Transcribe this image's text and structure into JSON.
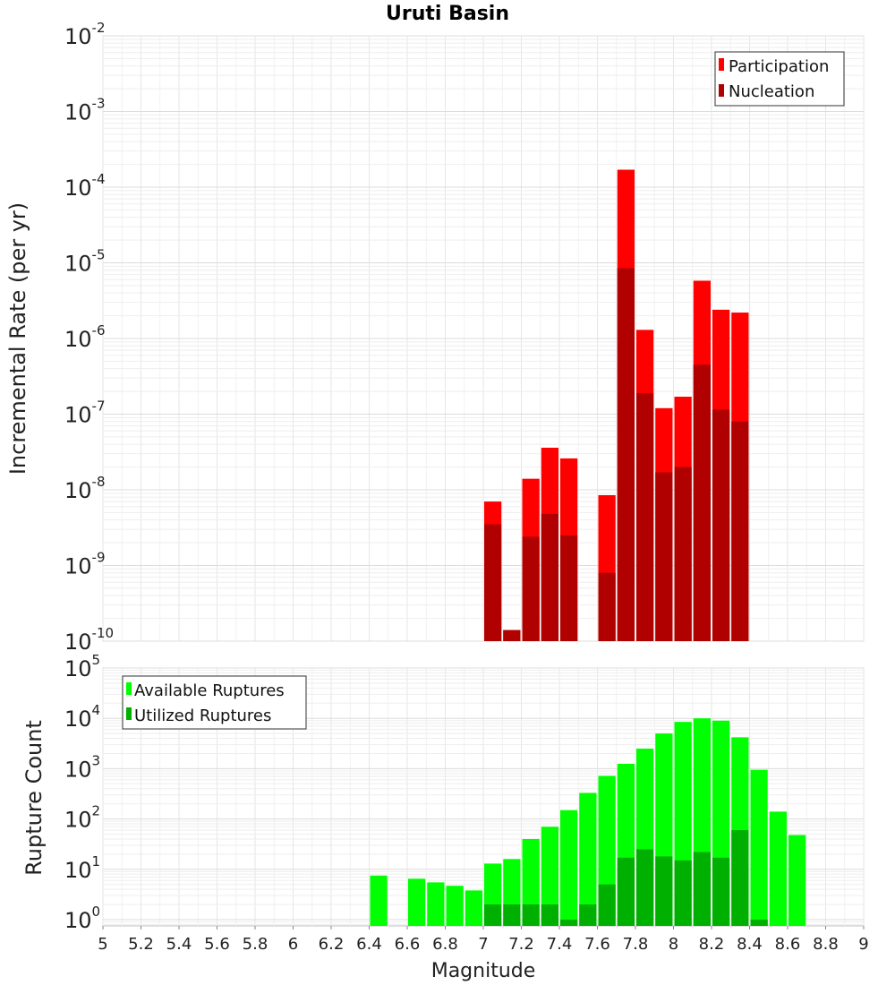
{
  "chart_data": [
    {
      "type": "bar",
      "title": "Uruti Basin",
      "xlabel": "",
      "ylabel": "Incremental Rate (per yr)",
      "y_scale": "log",
      "xlim": [
        5,
        9
      ],
      "ylim": [
        1e-10,
        0.01
      ],
      "grid": true,
      "legend_position": "top-right",
      "bar_width": 0.1,
      "y_ticks": [
        {
          "base": "10",
          "exp": "-2"
        },
        {
          "base": "10",
          "exp": "-3"
        },
        {
          "base": "10",
          "exp": "-4"
        },
        {
          "base": "10",
          "exp": "-5"
        },
        {
          "base": "10",
          "exp": "-6"
        },
        {
          "base": "10",
          "exp": "-7"
        },
        {
          "base": "10",
          "exp": "-8"
        },
        {
          "base": "10",
          "exp": "-9"
        },
        {
          "base": "10",
          "exp": "-10"
        }
      ],
      "series": [
        {
          "name": "Participation",
          "color": "#ff0000",
          "points": [
            {
              "x": 7.05,
              "y": 7e-09
            },
            {
              "x": 7.15,
              "y": 1.4e-10
            },
            {
              "x": 7.25,
              "y": 1.4e-08
            },
            {
              "x": 7.35,
              "y": 3.6e-08
            },
            {
              "x": 7.45,
              "y": 2.6e-08
            },
            {
              "x": 7.65,
              "y": 8.5e-09
            },
            {
              "x": 7.75,
              "y": 0.00017
            },
            {
              "x": 7.85,
              "y": 1.3e-06
            },
            {
              "x": 7.95,
              "y": 1.2e-07
            },
            {
              "x": 8.05,
              "y": 1.7e-07
            },
            {
              "x": 8.15,
              "y": 5.8e-06
            },
            {
              "x": 8.25,
              "y": 2.4e-06
            },
            {
              "x": 8.35,
              "y": 2.2e-06
            }
          ]
        },
        {
          "name": "Nucleation",
          "color": "#b00000",
          "points": [
            {
              "x": 7.05,
              "y": 3.5e-09
            },
            {
              "x": 7.15,
              "y": 1.4e-10
            },
            {
              "x": 7.25,
              "y": 2.4e-09
            },
            {
              "x": 7.35,
              "y": 4.8e-09
            },
            {
              "x": 7.45,
              "y": 2.5e-09
            },
            {
              "x": 7.65,
              "y": 8e-10
            },
            {
              "x": 7.75,
              "y": 8.5e-06
            },
            {
              "x": 7.85,
              "y": 1.9e-07
            },
            {
              "x": 7.95,
              "y": 1.7e-08
            },
            {
              "x": 8.05,
              "y": 2e-08
            },
            {
              "x": 8.15,
              "y": 4.5e-07
            },
            {
              "x": 8.25,
              "y": 1.15e-07
            },
            {
              "x": 8.35,
              "y": 8e-08
            }
          ]
        }
      ]
    },
    {
      "type": "bar",
      "title": "",
      "xlabel": "Magnitude",
      "ylabel": "Rupture Count",
      "y_scale": "log",
      "xlim": [
        5,
        9
      ],
      "ylim": [
        0.75,
        100000.0
      ],
      "grid": true,
      "legend_position": "top-left",
      "bar_width": 0.1,
      "y_ticks": [
        {
          "base": "10",
          "exp": "5"
        },
        {
          "base": "10",
          "exp": "4"
        },
        {
          "base": "10",
          "exp": "3"
        },
        {
          "base": "10",
          "exp": "2"
        },
        {
          "base": "10",
          "exp": "1"
        },
        {
          "base": "10",
          "exp": "0"
        }
      ],
      "x_ticks": [
        "5",
        "5.2",
        "5.4",
        "5.6",
        "5.8",
        "6",
        "6.2",
        "6.4",
        "6.6",
        "6.8",
        "7",
        "7.2",
        "7.4",
        "7.6",
        "7.8",
        "8",
        "8.2",
        "8.4",
        "8.6",
        "8.8",
        "9"
      ],
      "series": [
        {
          "name": "Available Ruptures",
          "color": "#00ff00",
          "points": [
            {
              "x": 6.45,
              "y": 7.5
            },
            {
              "x": 6.65,
              "y": 6.5
            },
            {
              "x": 6.75,
              "y": 5.5
            },
            {
              "x": 6.85,
              "y": 4.7
            },
            {
              "x": 6.95,
              "y": 3.8
            },
            {
              "x": 7.05,
              "y": 13
            },
            {
              "x": 7.15,
              "y": 16
            },
            {
              "x": 7.25,
              "y": 40
            },
            {
              "x": 7.35,
              "y": 70
            },
            {
              "x": 7.45,
              "y": 150
            },
            {
              "x": 7.55,
              "y": 330
            },
            {
              "x": 7.65,
              "y": 720
            },
            {
              "x": 7.75,
              "y": 1250
            },
            {
              "x": 7.85,
              "y": 2500
            },
            {
              "x": 7.95,
              "y": 5000
            },
            {
              "x": 8.05,
              "y": 8500
            },
            {
              "x": 8.15,
              "y": 10000
            },
            {
              "x": 8.25,
              "y": 9000
            },
            {
              "x": 8.35,
              "y": 4200
            },
            {
              "x": 8.45,
              "y": 950
            },
            {
              "x": 8.55,
              "y": 140
            },
            {
              "x": 8.65,
              "y": 48
            }
          ]
        },
        {
          "name": "Utilized Ruptures",
          "color": "#00b000",
          "points": [
            {
              "x": 7.05,
              "y": 2
            },
            {
              "x": 7.15,
              "y": 2
            },
            {
              "x": 7.25,
              "y": 2
            },
            {
              "x": 7.35,
              "y": 2
            },
            {
              "x": 7.45,
              "y": 1
            },
            {
              "x": 7.55,
              "y": 2
            },
            {
              "x": 7.65,
              "y": 5
            },
            {
              "x": 7.75,
              "y": 17
            },
            {
              "x": 7.85,
              "y": 25
            },
            {
              "x": 7.95,
              "y": 18
            },
            {
              "x": 8.05,
              "y": 15
            },
            {
              "x": 8.15,
              "y": 22
            },
            {
              "x": 8.25,
              "y": 17
            },
            {
              "x": 8.35,
              "y": 60
            },
            {
              "x": 8.45,
              "y": 1
            }
          ]
        }
      ]
    }
  ]
}
